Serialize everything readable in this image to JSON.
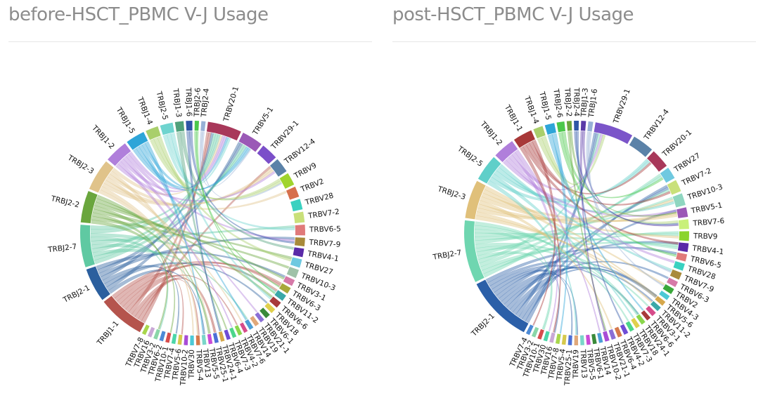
{
  "panels": [
    {
      "title": "before-HSCT_PBMC V-J Usage",
      "chart_data": {
        "type": "chord",
        "segments": [
          {
            "label": "TRBJ1-1",
            "value": 11.0,
            "color": "#b5544d"
          },
          {
            "label": "TRBJ2-1",
            "value": 8.0,
            "color": "#2b5f9e"
          },
          {
            "label": "TRBJ2-7",
            "value": 10.0,
            "color": "#5fc9a2"
          },
          {
            "label": "TRBJ2-2",
            "value": 7.5,
            "color": "#6aa63d"
          },
          {
            "label": "TRBJ2-3",
            "value": 7.5,
            "color": "#e0c38a"
          },
          {
            "label": "TRBJ1-2",
            "value": 5.5,
            "color": "#b07fdb"
          },
          {
            "label": "TRBJ1-5",
            "value": 4.5,
            "color": "#2ea5d8"
          },
          {
            "label": "TRBJ1-4",
            "value": 3.0,
            "color": "#a9cf6b"
          },
          {
            "label": "TRBJ2-5",
            "value": 3.0,
            "color": "#6fd4cf"
          },
          {
            "label": "TRBJ1-3",
            "value": 2.0,
            "color": "#4fa07a"
          },
          {
            "label": "TRBJ1-6",
            "value": 1.5,
            "color": "#2e55a6"
          },
          {
            "label": "TRBJ2-6",
            "value": 1.0,
            "color": "#4bc84b"
          },
          {
            "label": "TRBJ2-4",
            "value": 1.0,
            "color": "#97b0d6"
          },
          {
            "label": "TRBV20-1",
            "value": 8.0,
            "color": "#a8385a"
          },
          {
            "label": "TRBV5-1",
            "value": 5.0,
            "color": "#9b59b6"
          },
          {
            "label": "TRBV29-1",
            "value": 4.0,
            "color": "#7b4fc9"
          },
          {
            "label": "TRBV12-4",
            "value": 3.5,
            "color": "#5b82a8"
          },
          {
            "label": "TRBV9",
            "value": 3.0,
            "color": "#a0d42d"
          },
          {
            "label": "TRBV2",
            "value": 2.5,
            "color": "#d6704c"
          },
          {
            "label": "TRBV28",
            "value": 2.5,
            "color": "#3ad1c0"
          },
          {
            "label": "TRBV7-2",
            "value": 2.5,
            "color": "#c9e07a"
          },
          {
            "label": "TRBV6-5",
            "value": 2.5,
            "color": "#e07a7a"
          },
          {
            "label": "TRBV7-9",
            "value": 2.0,
            "color": "#a88a3a"
          },
          {
            "label": "TRBV4-1",
            "value": 2.0,
            "color": "#5a2aa8"
          },
          {
            "label": "TRBV27",
            "value": 2.0,
            "color": "#6fc9e0"
          },
          {
            "label": "TRBV10-3",
            "value": 2.0,
            "color": "#9fc2a8"
          },
          {
            "label": "TRBV3-1",
            "value": 1.5,
            "color": "#d67aa8"
          },
          {
            "label": "TRBV6-3",
            "value": 1.5,
            "color": "#a8a83a"
          },
          {
            "label": "TRBV11-2",
            "value": 1.5,
            "color": "#3aa8a8"
          },
          {
            "label": "TRBV6-6",
            "value": 1.5,
            "color": "#a83a3a"
          },
          {
            "label": "TRBV18",
            "value": 1.2,
            "color": "#e0d04c"
          },
          {
            "label": "TRBV6-1",
            "value": 1.2,
            "color": "#3a8a3a"
          },
          {
            "label": "TRBV21-1",
            "value": 1.0,
            "color": "#8a6fd6"
          },
          {
            "label": "TRBV19",
            "value": 1.0,
            "color": "#e0a87a"
          },
          {
            "label": "TRBV14",
            "value": 1.0,
            "color": "#4c9fd6"
          },
          {
            "label": "TRBV7-6",
            "value": 0.9,
            "color": "#d64c8a"
          },
          {
            "label": "TRBV4-2",
            "value": 0.9,
            "color": "#8ad64c"
          },
          {
            "label": "TRBV7-3",
            "value": 0.9,
            "color": "#4cd68a"
          },
          {
            "label": "TRBV6-4",
            "value": 0.9,
            "color": "#6f4cd6"
          },
          {
            "label": "TRBV24-1",
            "value": 0.9,
            "color": "#d6a84c"
          },
          {
            "label": "TRBV25-1",
            "value": 0.9,
            "color": "#4c6fd6"
          },
          {
            "label": "TRBV5-5",
            "value": 0.9,
            "color": "#c94cd6"
          },
          {
            "label": "TRBV13",
            "value": 0.9,
            "color": "#7ad6c9"
          },
          {
            "label": "TRBV5-4",
            "value": 0.9,
            "color": "#d67a4c"
          },
          {
            "label": "TRBV30",
            "value": 0.9,
            "color": "#4cc9d6"
          },
          {
            "label": "TRBV10-2",
            "value": 0.9,
            "color": "#a84cd6"
          },
          {
            "label": "TRBV5-6",
            "value": 0.9,
            "color": "#d6c94c"
          },
          {
            "label": "TRBV7-4",
            "value": 0.9,
            "color": "#4cd6a8"
          },
          {
            "label": "TRBV10-1",
            "value": 0.9,
            "color": "#d64c4c"
          },
          {
            "label": "TRBV6-2",
            "value": 0.9,
            "color": "#4c8ad6"
          },
          {
            "label": "TRBV3-2",
            "value": 0.9,
            "color": "#8ad6a8"
          },
          {
            "label": "TRBV16",
            "value": 0.9,
            "color": "#c9a8d6"
          },
          {
            "label": "TRBV7-8",
            "value": 0.9,
            "color": "#a8d64c"
          }
        ]
      }
    },
    {
      "title": "post-HSCT_PBMC V-J Usage",
      "chart_data": {
        "type": "chord",
        "segments": [
          {
            "label": "TRBJ2-1",
            "value": 14.0,
            "color": "#2b5fa8"
          },
          {
            "label": "TRBJ2-7",
            "value": 13.0,
            "color": "#6fd6b0"
          },
          {
            "label": "TRBJ2-3",
            "value": 8.0,
            "color": "#e0c07a"
          },
          {
            "label": "TRBJ2-5",
            "value": 5.5,
            "color": "#5fcfc9"
          },
          {
            "label": "TRBJ1-2",
            "value": 4.5,
            "color": "#b07fdb"
          },
          {
            "label": "TRBJ1-1",
            "value": 4.0,
            "color": "#a83838"
          },
          {
            "label": "TRBJ1-4",
            "value": 2.0,
            "color": "#a9cf6b"
          },
          {
            "label": "TRBJ1-5",
            "value": 2.0,
            "color": "#2ea5d8"
          },
          {
            "label": "TRBJ2-6",
            "value": 1.6,
            "color": "#4bc84b"
          },
          {
            "label": "TRBJ2-2",
            "value": 1.0,
            "color": "#6aa63d"
          },
          {
            "label": "TRBJ2-4",
            "value": 1.0,
            "color": "#2e55a6"
          },
          {
            "label": "TRBJ1-3",
            "value": 1.0,
            "color": "#5a3aa8"
          },
          {
            "label": "TRBJ1-6",
            "value": 1.0,
            "color": "#97b0d6"
          },
          {
            "label": "TRBV29-1",
            "value": 8.0,
            "color": "#7b55c9"
          },
          {
            "label": "TRBV12-4",
            "value": 4.5,
            "color": "#5b82a8"
          },
          {
            "label": "TRBV20-1",
            "value": 4.0,
            "color": "#a8385a"
          },
          {
            "label": "TRBV27",
            "value": 2.5,
            "color": "#6fc9e0"
          },
          {
            "label": "TRBV7-2",
            "value": 2.5,
            "color": "#c9e07a"
          },
          {
            "label": "TRBV10-3",
            "value": 2.5,
            "color": "#8fd6c0"
          },
          {
            "label": "TRBV5-1",
            "value": 2.0,
            "color": "#9b59b6"
          },
          {
            "label": "TRBV7-6",
            "value": 2.0,
            "color": "#c9f07a"
          },
          {
            "label": "TRBV9",
            "value": 2.0,
            "color": "#8ad42d"
          },
          {
            "label": "TRBV4-1",
            "value": 1.8,
            "color": "#5a2aa8"
          },
          {
            "label": "TRBV6-5",
            "value": 1.5,
            "color": "#e07a7a"
          },
          {
            "label": "TRBV28",
            "value": 1.5,
            "color": "#3ad1c0"
          },
          {
            "label": "TRBV7-9",
            "value": 1.5,
            "color": "#a88a3a"
          },
          {
            "label": "TRBV6-3",
            "value": 1.2,
            "color": "#d67aa8"
          },
          {
            "label": "TRBV2",
            "value": 1.2,
            "color": "#3aa83a"
          },
          {
            "label": "TRBV4-3",
            "value": 1.0,
            "color": "#4cc9d6"
          },
          {
            "label": "TRBV5-6",
            "value": 1.0,
            "color": "#d6a84c"
          },
          {
            "label": "TRBV11-2",
            "value": 1.0,
            "color": "#3aa8a8"
          },
          {
            "label": "TRBV3-1",
            "value": 1.0,
            "color": "#d64c8a"
          },
          {
            "label": "TRBV6-6",
            "value": 0.9,
            "color": "#a83a3a"
          },
          {
            "label": "TRBV24-1",
            "value": 0.9,
            "color": "#8ad64c"
          },
          {
            "label": "TRBV18",
            "value": 0.9,
            "color": "#e0d04c"
          },
          {
            "label": "TRBV7-3",
            "value": 0.9,
            "color": "#4cd68a"
          },
          {
            "label": "TRBV4-2",
            "value": 0.9,
            "color": "#6f4cd6"
          },
          {
            "label": "TRBV6-4",
            "value": 0.9,
            "color": "#d67a4c"
          },
          {
            "label": "TRBV21-1",
            "value": 0.9,
            "color": "#8a6fd6"
          },
          {
            "label": "TRBV10-2",
            "value": 0.9,
            "color": "#a84cd6"
          },
          {
            "label": "TRBV14",
            "value": 0.8,
            "color": "#4c9fd6"
          },
          {
            "label": "TRBV6-1",
            "value": 0.8,
            "color": "#3a8a3a"
          },
          {
            "label": "TRBV5-5",
            "value": 0.8,
            "color": "#c94cd6"
          },
          {
            "label": "TRBV13",
            "value": 0.8,
            "color": "#7ad6c9"
          },
          {
            "label": "TRBV19",
            "value": 0.8,
            "color": "#e0a87a"
          },
          {
            "label": "TRBV25-1",
            "value": 0.8,
            "color": "#4c6fd6"
          },
          {
            "label": "TRBV5-4",
            "value": 0.8,
            "color": "#d6c94c"
          },
          {
            "label": "TRBV7-8",
            "value": 0.8,
            "color": "#a8d64c"
          },
          {
            "label": "TRBV16",
            "value": 0.8,
            "color": "#c9a8d6"
          },
          {
            "label": "TRBV30",
            "value": 0.8,
            "color": "#4cd6a8"
          },
          {
            "label": "TRBV10-1",
            "value": 0.8,
            "color": "#d64c4c"
          },
          {
            "label": "TRBV3-2",
            "value": 0.8,
            "color": "#8ad6a8"
          },
          {
            "label": "TRBV7-4",
            "value": 0.8,
            "color": "#4c8ad6"
          }
        ]
      }
    }
  ]
}
